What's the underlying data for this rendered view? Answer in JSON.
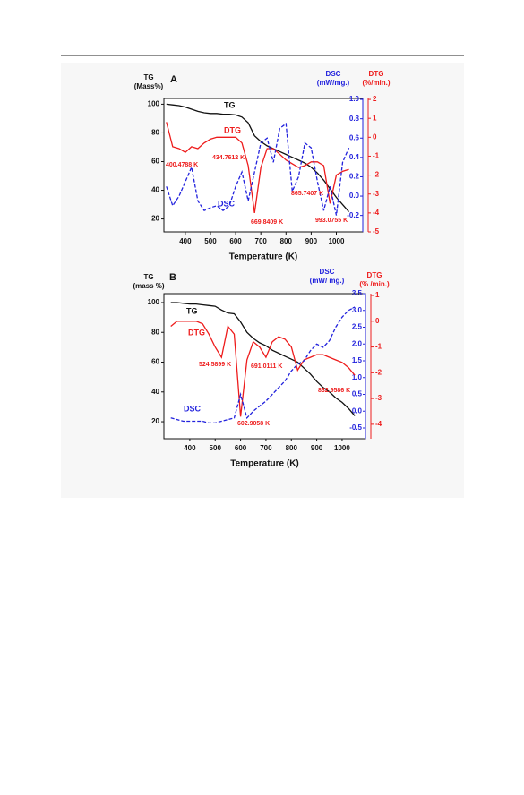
{
  "chart_data": [
    {
      "type": "line",
      "title": "A",
      "xlabel": "Temperature (K)",
      "ylabel": [
        "TG",
        "(Mass%)"
      ],
      "y2label": [
        "DSC",
        "(mW/mg.)"
      ],
      "y3label": [
        "DTG",
        "(%/min.)"
      ],
      "x": [
        325,
        350,
        375,
        400,
        425,
        450,
        475,
        500,
        525,
        550,
        575,
        600,
        625,
        650,
        675,
        700,
        725,
        750,
        775,
        800,
        825,
        850,
        875,
        900,
        925,
        950,
        975,
        1000,
        1025,
        1050
      ],
      "xlim": [
        315,
        1105
      ],
      "xticks": [
        400,
        500,
        600,
        700,
        800,
        900,
        1000
      ],
      "ylim": [
        11,
        104
      ],
      "yticks": [
        20,
        40,
        60,
        80,
        100
      ],
      "y2lim": [
        -0.37,
        1.01
      ],
      "y2ticks": [
        -0.2,
        {
          "value": 0,
          "label": "0.0"
        },
        0.2,
        0.4,
        0.6,
        0.8,
        {
          "value": 1,
          "label": "1.0"
        }
      ],
      "y3lim": [
        -5,
        2.05
      ],
      "y3ticks": [
        -5,
        -4,
        -3,
        -2,
        -1,
        0,
        1,
        2
      ],
      "series": [
        {
          "name": "TG",
          "color": "#111111",
          "axis": "y",
          "dash": false,
          "values": [
            100,
            99.5,
            99,
            98,
            96.5,
            95,
            94,
            93.5,
            93.5,
            93,
            93,
            92.5,
            91,
            87,
            78,
            74,
            71,
            69,
            67,
            65,
            63,
            61,
            59,
            56,
            52,
            47,
            41,
            35,
            30,
            25
          ]
        },
        {
          "name": "DTG",
          "color": "#ee1c1c",
          "axis": "y3",
          "dash": false,
          "values": [
            0.8,
            -0.5,
            -0.6,
            -0.8,
            -0.5,
            -0.6,
            -0.3,
            -0.1,
            0,
            0,
            0,
            0,
            -0.3,
            -1.5,
            -4,
            -1.6,
            -0.6,
            -0.6,
            -0.9,
            -1.2,
            -1.4,
            -1.6,
            -1.5,
            -1.3,
            -1.3,
            -1.5,
            -3.5,
            -2,
            -1.8,
            -1.7
          ]
        },
        {
          "name": "DSC",
          "color": "#2222dd",
          "axis": "y2",
          "dash": true,
          "values": [
            0.1,
            -0.1,
            0,
            0.15,
            0.3,
            -0.05,
            -0.15,
            -0.12,
            -0.1,
            -0.15,
            -0.1,
            0.1,
            0.25,
            -0.05,
            0.25,
            0.55,
            0.6,
            0.35,
            0.7,
            0.75,
            0.05,
            0.2,
            0.55,
            0.5,
            0.15,
            -0.15,
            0.1,
            -0.2,
            0.35,
            0.5
          ]
        }
      ],
      "annotations": [
        "434.7612 K",
        "400.4788 K",
        "865.7407 K",
        "669.8409 K",
        "993.0755 K"
      ]
    },
    {
      "type": "line",
      "title": "B",
      "xlabel": "Temperature (K)",
      "ylabel": [
        "TG",
        "(mass %)"
      ],
      "y2label": [
        "DSC",
        "(mW/ mg.)"
      ],
      "y3label": [
        "DTG",
        "(% /min.)"
      ],
      "x": [
        325,
        350,
        375,
        400,
        425,
        450,
        475,
        500,
        525,
        550,
        575,
        600,
        625,
        650,
        675,
        700,
        725,
        750,
        775,
        800,
        825,
        850,
        875,
        900,
        925,
        950,
        975,
        1000,
        1025,
        1050
      ],
      "xlim": [
        298,
        1092
      ],
      "xticks": [
        400,
        500,
        600,
        700,
        800,
        900,
        1000
      ],
      "ylim": [
        8.6,
        106
      ],
      "yticks": [
        20,
        40,
        60,
        80,
        100
      ],
      "y2lim": [
        -0.82,
        3.5
      ],
      "y2ticks": [
        -0.5,
        {
          "value": 0,
          "label": "0.0"
        },
        0.5,
        {
          "value": 1,
          "label": "1.0"
        },
        1.5,
        {
          "value": 2,
          "label": "2.0"
        },
        2.5,
        {
          "value": 3,
          "label": "3.0"
        },
        3.5
      ],
      "y3lim": [
        -4.56,
        1.07
      ],
      "y3ticks": [
        -4,
        -3,
        -2,
        -1,
        0,
        1
      ],
      "series": [
        {
          "name": "TG",
          "color": "#111111",
          "axis": "y",
          "dash": false,
          "values": [
            100,
            100,
            99.5,
            99,
            99,
            98.5,
            98,
            97.5,
            95,
            93,
            92.5,
            87,
            80,
            76,
            73,
            71,
            68,
            66,
            64,
            62,
            60,
            56,
            52,
            47,
            43,
            40,
            36,
            33,
            29,
            24
          ]
        },
        {
          "name": "DTG",
          "color": "#ee1c1c",
          "axis": "y3",
          "dash": false,
          "values": [
            -0.2,
            0,
            0,
            0,
            0,
            -0.1,
            -0.5,
            -1,
            -1.4,
            -0.2,
            -0.5,
            -3.7,
            -1.5,
            -0.8,
            -1,
            -1.4,
            -0.8,
            -0.6,
            -0.7,
            -1,
            -1.9,
            -1.5,
            -1.4,
            -1.3,
            -1.3,
            -1.4,
            -1.5,
            -1.6,
            -1.8,
            -2.1
          ]
        },
        {
          "name": "DSC",
          "color": "#2222dd",
          "axis": "y2",
          "dash": true,
          "values": [
            -0.2,
            -0.25,
            -0.3,
            -0.3,
            -0.3,
            -0.3,
            -0.35,
            -0.35,
            -0.3,
            -0.25,
            -0.2,
            0.5,
            -0.2,
            0,
            0.15,
            0.3,
            0.5,
            0.7,
            0.9,
            1.2,
            1.4,
            1.5,
            1.8,
            2,
            1.9,
            2.1,
            2.5,
            2.8,
            3,
            3.1
          ]
        }
      ],
      "annotations": [
        "524.5899 K",
        "691.0111 K",
        "832.9586 K",
        "602.9058 K"
      ]
    }
  ]
}
